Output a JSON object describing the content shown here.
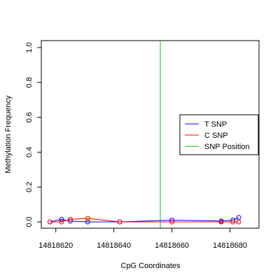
{
  "chart_data": {
    "type": "line",
    "title": "",
    "xlabel": "CpG Coordinates",
    "ylabel": "Methylation Frequency",
    "xlim": [
      14818615,
      14818690
    ],
    "ylim": [
      0,
      1.0
    ],
    "x_ticks": [
      14818620,
      14818640,
      14818660,
      14818680
    ],
    "y_ticks": [
      0.0,
      0.2,
      0.4,
      0.6,
      0.8,
      1.0
    ],
    "y_tick_labels": [
      "0.0",
      "0.2",
      "0.4",
      "0.6",
      "0.8",
      "1.0"
    ],
    "grid": false,
    "legend_position": "right",
    "snp_position": 14818656,
    "series": [
      {
        "name": "T SNP",
        "color": "#0000ff",
        "x": [
          14818618,
          14818622,
          14818625,
          14818631,
          14818642,
          14818660,
          14818677,
          14818681,
          14818683
        ],
        "y": [
          0.0,
          0.015,
          0.005,
          0.0,
          0.0,
          0.01,
          0.005,
          0.01,
          0.025
        ]
      },
      {
        "name": "C SNP",
        "color": "#ff0000",
        "x": [
          14818618,
          14818622,
          14818625,
          14818631,
          14818642,
          14818660,
          14818677,
          14818681,
          14818683
        ],
        "y": [
          0.0,
          0.0,
          0.015,
          0.02,
          0.0,
          0.0,
          0.0,
          0.0,
          0.0
        ]
      }
    ],
    "legend": [
      {
        "label": "T SNP",
        "color": "#0000ff"
      },
      {
        "label": "C SNP",
        "color": "#ff0000"
      },
      {
        "label": "SNP Position",
        "color": "#00cc00"
      }
    ]
  }
}
